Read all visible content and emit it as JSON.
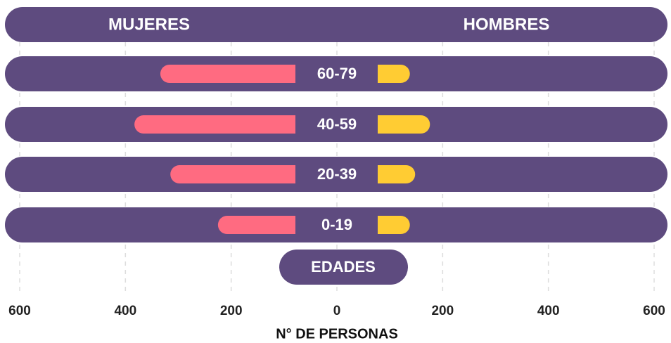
{
  "chart_data": {
    "type": "pyramid",
    "categories": [
      "60-79",
      "40-59",
      "20-39",
      "0-19"
    ],
    "series": [
      {
        "name": "MUJERES",
        "color": "#ff6b81",
        "values": [
          334,
          383,
          315,
          225
        ]
      },
      {
        "name": "HOMBRES",
        "color": "#ffcc33",
        "values": [
          138,
          176,
          148,
          138
        ]
      }
    ],
    "ylabel": "EDADES",
    "xlabel": "N° DE PERSONAS",
    "xlim": [
      -600,
      600
    ],
    "xticks": [
      {
        "value": -600,
        "label": "600"
      },
      {
        "value": -400,
        "label": "400"
      },
      {
        "value": -200,
        "label": "200"
      },
      0,
      200,
      400,
      600
    ],
    "grid": true
  }
}
